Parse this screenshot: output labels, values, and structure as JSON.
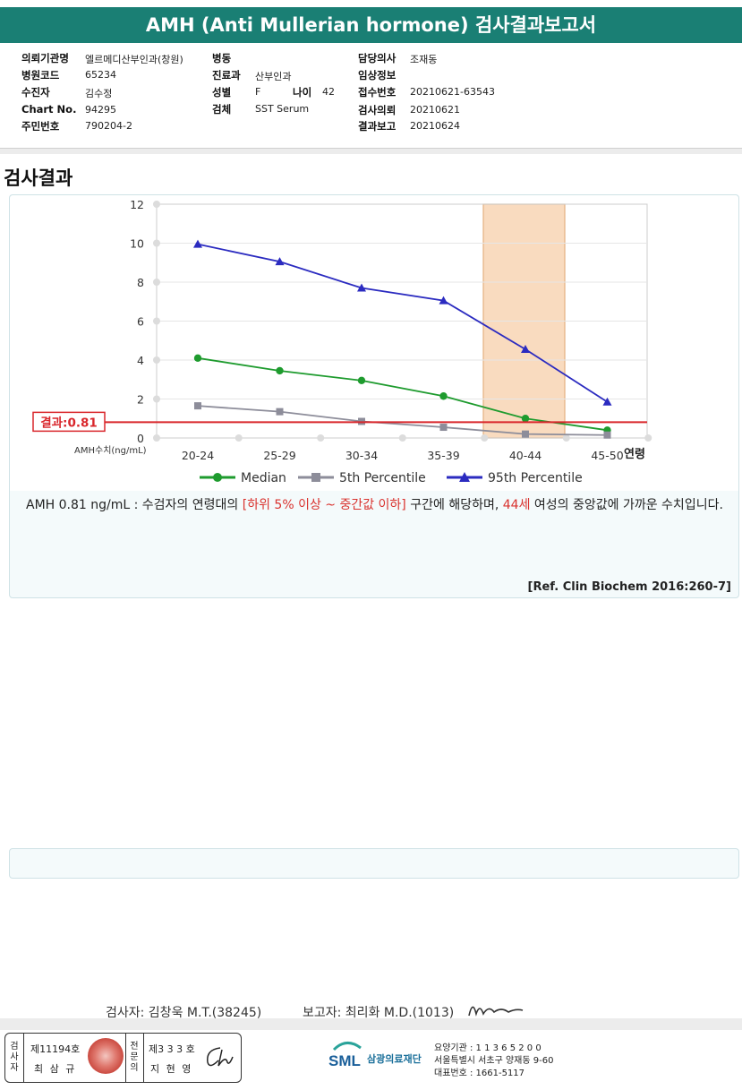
{
  "header": {
    "title": "AMH (Anti Mullerian hormone) 검사결과보고서"
  },
  "patient_info": {
    "institution_label": "의뢰기관명",
    "institution_value": "엘르메디산부인과(창원)",
    "ward_label": "병동",
    "ward_value": "",
    "doctor_label": "담당의사",
    "doctor_value": "조재동",
    "hospital_code_label": "병원코드",
    "hospital_code_value": "65234",
    "department_label": "진료과",
    "department_value": "산부인과",
    "clinical_info_label": "임상정보",
    "clinical_info_value": "",
    "patient_label": "수진자",
    "patient_value": "김수정",
    "sex_label": "성별",
    "sex_value": "F",
    "age_label": "나이",
    "age_value": "42",
    "receipt_label": "접수번호",
    "receipt_value": "20210621-63543",
    "chart_label": "Chart No.",
    "chart_value": "94295",
    "specimen_label": "검체",
    "specimen_value": "SST Serum",
    "request_label": "검사의뢰",
    "request_value": "20210621",
    "id_label": "주민번호",
    "id_value": "790204-2",
    "report_label": "결과보고",
    "report_value": "20210624"
  },
  "section_title": "검사결과",
  "chart_data": {
    "type": "line",
    "categories": [
      "20-24",
      "25-29",
      "30-34",
      "35-39",
      "40-44",
      "45-50"
    ],
    "series": [
      {
        "name": "Median",
        "color": "#1e9b2e",
        "marker": "circle",
        "values": [
          4.1,
          3.45,
          2.95,
          2.15,
          1.0,
          0.4
        ]
      },
      {
        "name": "5th Percentile",
        "color": "#8d8d9a",
        "marker": "square",
        "values": [
          1.65,
          1.35,
          0.85,
          0.55,
          0.2,
          0.15
        ]
      },
      {
        "name": "95th Percentile",
        "color": "#2b2bc0",
        "marker": "triangle",
        "values": [
          9.95,
          9.05,
          7.7,
          7.05,
          4.55,
          1.85
        ]
      }
    ],
    "ylim": [
      0,
      12
    ],
    "yticks": [
      "0",
      "2",
      "4",
      "6",
      "8",
      "10",
      "12"
    ],
    "xlabel_left": "AMH수치(ng/mL)",
    "xlabel_right": "연령",
    "highlight_category": "40-44",
    "highlight_color": "#f8d5b5",
    "result_line": {
      "value": 0.81,
      "label": "결과:0.81",
      "color": "#d9262b"
    },
    "grid": true,
    "legend_position": "bottom"
  },
  "interpretation": {
    "part1": "AMH  0.81 ng/mL : 수검자의 연령대의 ",
    "highlight1": "[하위 5% 이상 ~ 중간값 이하]",
    "part2": "  구간에 해당하며, ",
    "highlight2": "44세",
    "part3": " 여성의 중앙값에 가까운 수치입니다."
  },
  "reference": "[Ref. Clin Biochem 2016:260-7]",
  "signatures": {
    "tester": "검사자: 김창욱 M.T.(38245)",
    "reporter": "보고자: 최리화 M.D.(1013)"
  },
  "stamp": {
    "col1": "검사자",
    "license1": "제11194호",
    "name1": "최 삼 규",
    "col2": "전문의",
    "license2": "제3 3 3 호",
    "name2": "지 현 영"
  },
  "organization": {
    "logo_text": "SML",
    "name": "삼광의료재단",
    "code_line": "요양기관 : 1 1 3 6 5 2 0 0",
    "address_line": "서울특별시 서초구 양재동 9-60",
    "phone_line": "대표번호 : 1661-5117"
  }
}
